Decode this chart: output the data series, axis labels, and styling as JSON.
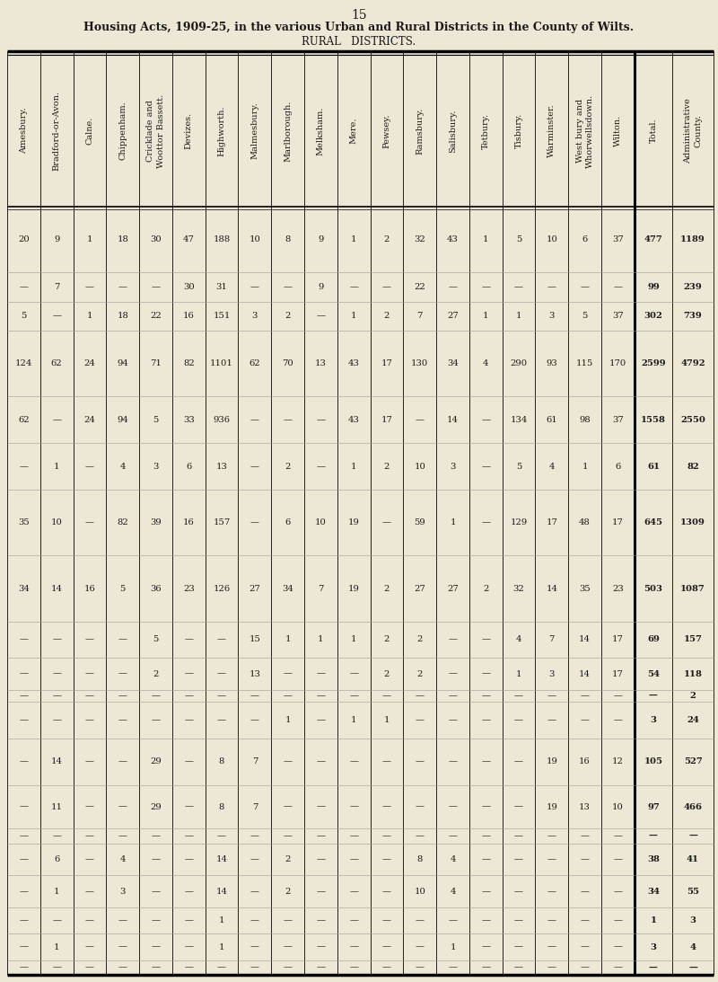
{
  "page_number": "15",
  "title": "Housing Acts, 1909-25, in the various Urban and Rural Districts in the County of Wilts.",
  "subtitle": "RURAL   DISTRICTS.",
  "bg_color": "#ede8d5",
  "col_headers": [
    "Amesbury.",
    "Bradford-or-Avon.",
    "Calne.",
    "Chippenham.",
    "Cricklade and\nWoottor Bassett.",
    "Devizes.",
    "Highworth.",
    "Malmesbury.",
    "Marlborough.",
    "Melksham.",
    "Mere.",
    "Pewsey.",
    "Ramsbury.",
    "Salisbury.",
    "Tetbury.",
    "Tisbury.",
    "Warminster.",
    "West bury and\nWhorwellsdown.",
    "Wilton.",
    "Total.",
    "Administrative\nCounty."
  ],
  "rows": [
    [
      "20",
      "9",
      "1",
      "18",
      "30",
      "47",
      "188",
      "10",
      "8",
      "9",
      "1",
      "2",
      "32",
      "43",
      "1",
      "5",
      "10",
      "6",
      "37",
      "477",
      "1189"
    ],
    [
      "—",
      "7",
      "—",
      "—",
      "—",
      "30",
      "31",
      "—",
      "—",
      "9",
      "—",
      "—",
      "22",
      "—",
      "—",
      "—",
      "—",
      "—",
      "—",
      "99",
      "239"
    ],
    [
      "5",
      "—",
      "1",
      "18",
      "22",
      "16",
      "151",
      "3",
      "2",
      "—",
      "1",
      "2",
      "7",
      "27",
      "1",
      "1",
      "3",
      "5",
      "37",
      "302",
      "739"
    ],
    [
      "124",
      "62",
      "24",
      "94",
      "71",
      "82",
      "1101",
      "62",
      "70",
      "13",
      "43",
      "17",
      "130",
      "34",
      "4",
      "290",
      "93",
      "115",
      "170",
      "2599",
      "4792"
    ],
    [
      "62",
      "—",
      "24",
      "94",
      "5",
      "33",
      "936",
      "—",
      "—",
      "—",
      "43",
      "17",
      "—",
      "14",
      "—",
      "134",
      "61",
      "98",
      "37",
      "1558",
      "2550"
    ],
    [
      "—",
      "1",
      "—",
      "4",
      "3",
      "6",
      "13",
      "—",
      "2",
      "—",
      "1",
      "2",
      "10",
      "3",
      "—",
      "5",
      "4",
      "1",
      "6",
      "61",
      "82"
    ],
    [
      "35",
      "10",
      "—",
      "82",
      "39",
      "16",
      "157",
      "—",
      "6",
      "10",
      "19",
      "—",
      "59",
      "1",
      "—",
      "129",
      "17",
      "48",
      "17",
      "645",
      "1309"
    ],
    [
      "34",
      "14",
      "16",
      "5",
      "36",
      "23",
      "126",
      "27",
      "34",
      "7",
      "19",
      "2",
      "27",
      "27",
      "2",
      "32",
      "14",
      "35",
      "23",
      "503",
      "1087"
    ],
    [
      "—",
      "—",
      "—",
      "—",
      "5",
      "—",
      "—",
      "15",
      "1",
      "1",
      "1",
      "2",
      "2",
      "—",
      "—",
      "4",
      "7",
      "14",
      "17",
      "69",
      "157"
    ],
    [
      "—",
      "—",
      "—",
      "—",
      "2",
      "—",
      "—",
      "13",
      "—",
      "—",
      "—",
      "2",
      "2",
      "—",
      "—",
      "1",
      "3",
      "14",
      "17",
      "54",
      "118"
    ],
    [
      "—",
      "—",
      "—",
      "—",
      "—",
      "—",
      "—",
      "—",
      "—",
      "—",
      "—",
      "—",
      "—",
      "—",
      "—",
      "—",
      "—",
      "—",
      "—",
      "—",
      "2"
    ],
    [
      "—",
      "—",
      "—",
      "—",
      "—",
      "—",
      "—",
      "—",
      "1",
      "—",
      "1",
      "1",
      "—",
      "—",
      "—",
      "—",
      "—",
      "—",
      "—",
      "3",
      "24"
    ],
    [
      "—",
      "14",
      "—",
      "—",
      "29",
      "—",
      "8",
      "7",
      "—",
      "—",
      "—",
      "—",
      "—",
      "—",
      "—",
      "—",
      "19",
      "16",
      "12",
      "105",
      "527"
    ],
    [
      "—",
      "11",
      "—",
      "—",
      "29",
      "—",
      "8",
      "7",
      "—",
      "—",
      "—",
      "—",
      "—",
      "—",
      "—",
      "—",
      "19",
      "13",
      "10",
      "97",
      "466"
    ],
    [
      "—",
      "—",
      "—",
      "—",
      "—",
      "—",
      "—",
      "—",
      "—",
      "—",
      "—",
      "—",
      "—",
      "—",
      "—",
      "—",
      "—",
      "—",
      "—",
      "—",
      "—"
    ],
    [
      "—",
      "6",
      "—",
      "4",
      "—",
      "—",
      "14",
      "—",
      "2",
      "—",
      "—",
      "—",
      "8",
      "4",
      "—",
      "—",
      "—",
      "—",
      "—",
      "38",
      "41"
    ],
    [
      "—",
      "1",
      "—",
      "3",
      "—",
      "—",
      "14",
      "—",
      "2",
      "—",
      "—",
      "—",
      "10",
      "4",
      "—",
      "—",
      "—",
      "—",
      "—",
      "34",
      "55"
    ],
    [
      "—",
      "—",
      "—",
      "—",
      "—",
      "—",
      "1",
      "—",
      "—",
      "—",
      "—",
      "—",
      "—",
      "—",
      "—",
      "—",
      "—",
      "—",
      "—",
      "1",
      "3"
    ],
    [
      "—",
      "1",
      "—",
      "—",
      "—",
      "—",
      "1",
      "—",
      "—",
      "—",
      "—",
      "—",
      "—",
      "1",
      "—",
      "—",
      "—",
      "—",
      "—",
      "3",
      "4"
    ],
    [
      "—",
      "—",
      "—",
      "—",
      "—",
      "—",
      "—",
      "—",
      "—",
      "—",
      "—",
      "—",
      "—",
      "—",
      "—",
      "—",
      "—",
      "—",
      "—",
      "—",
      "—"
    ]
  ],
  "row_height_rel": [
    4.5,
    2.0,
    2.0,
    4.5,
    3.2,
    3.2,
    4.5,
    4.5,
    2.5,
    2.2,
    0.8,
    2.5,
    3.2,
    3.0,
    1.0,
    2.2,
    2.2,
    1.8,
    1.8,
    1.0
  ]
}
